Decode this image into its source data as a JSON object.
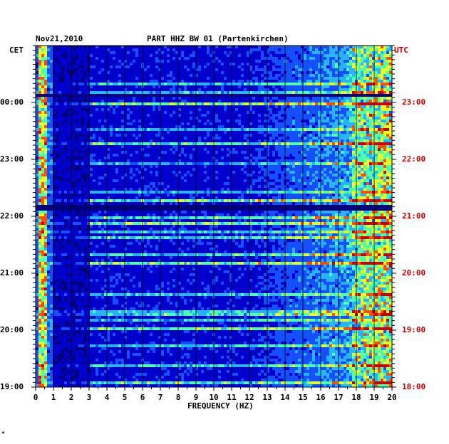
{
  "header": {
    "date": "Nov21,2010",
    "title": "PART HHZ BW 01 (Partenkirchen)"
  },
  "chart_data": {
    "type": "heatmap",
    "title": "PART HHZ BW 01 (Partenkirchen)",
    "date": "Nov21,2010",
    "xlabel": "FREQUENCY (HZ)",
    "x_ticks": [
      "0",
      "1",
      "2",
      "3",
      "4",
      "5",
      "6",
      "7",
      "8",
      "9",
      "10",
      "11",
      "12",
      "13",
      "14",
      "15",
      "16",
      "17",
      "18",
      "19",
      "20"
    ],
    "xlim": [
      0,
      20
    ],
    "left_axis": {
      "label": "CET",
      "ticks": [
        "00:00",
        "23:00",
        "22:00",
        "21:00",
        "20:00",
        "19:00"
      ]
    },
    "right_axis": {
      "label": "UTC",
      "ticks": [
        "23:00",
        "22:00",
        "21:00",
        "20:00",
        "19:00",
        "18:00"
      ]
    },
    "time_span_hours": 6,
    "colormap": [
      "#00007a",
      "#0000cc",
      "#1450ff",
      "#28b4ff",
      "#50ffaa",
      "#e6ff28",
      "#ff5000",
      "#c80000"
    ],
    "bright_low_freq_band_hz": [
      0.2,
      0.6
    ],
    "dark_gap_row_fraction": 0.47
  },
  "colors": {
    "axis": "#000000",
    "utc": "#cc0000",
    "background": "#ffffff"
  },
  "footnote": "*"
}
